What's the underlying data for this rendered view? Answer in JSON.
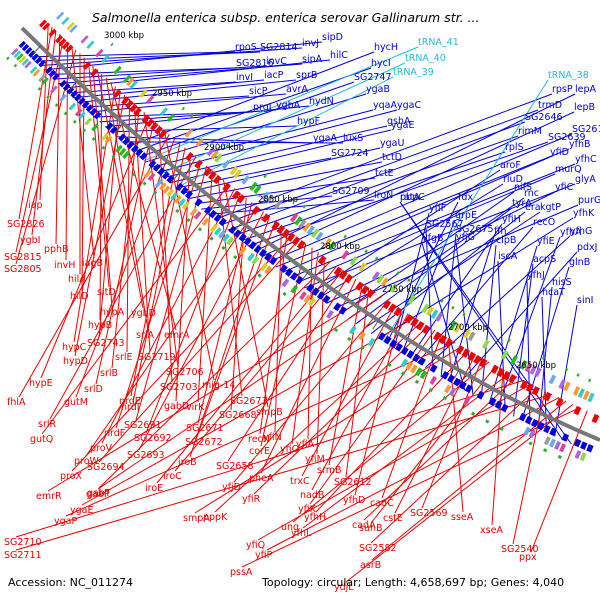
{
  "title": "Salmonella enterica subsp. enterica serovar Gallinarum str. ...",
  "footer": {
    "accession": "Accession: NC_011274",
    "topology": "Topology: circular; Length: 4,658,697 bp; Genes: 4,040"
  },
  "colors": {
    "backbone": "#777777",
    "forward_strand": "#0000dd",
    "reverse_strand": "#ee0000",
    "trna": "#22bbdd",
    "rrna_tick": "#229922",
    "gc_ticks": "#33aa33"
  },
  "scale_labels": [
    "3000 kbp",
    "2950 kbp",
    "2900 kbp",
    "2850 kbp",
    "2800 kbp",
    "2750 kbp",
    "2700 kbp",
    "2650 kbp"
  ],
  "blue_labels": [
    {
      "text": "rpoS"
    },
    {
      "text": "SG2814"
    },
    {
      "text": "invJ"
    },
    {
      "text": "sipD"
    },
    {
      "text": "SG2816"
    },
    {
      "text": "invC"
    },
    {
      "text": "sipA"
    },
    {
      "text": "hilC"
    },
    {
      "text": "invI"
    },
    {
      "text": "iacP"
    },
    {
      "text": "sprB"
    },
    {
      "text": "sicP"
    },
    {
      "text": "avrA"
    },
    {
      "text": "prgI"
    },
    {
      "text": "ygbA"
    },
    {
      "text": "hydN"
    },
    {
      "text": "hypF"
    },
    {
      "text": "ygaA"
    },
    {
      "text": "luxS"
    },
    {
      "text": "hycH"
    },
    {
      "text": "hycI"
    },
    {
      "text": "SG2747"
    },
    {
      "text": "ygaB"
    },
    {
      "text": "yqaA"
    },
    {
      "text": "ygaC"
    },
    {
      "text": "gshA"
    },
    {
      "text": "ygaE"
    },
    {
      "text": "SG2724"
    },
    {
      "text": "ygaU"
    },
    {
      "text": "tctD"
    },
    {
      "text": "tctE"
    },
    {
      "text": "SG2709"
    },
    {
      "text": "iroN"
    },
    {
      "text": "rpsP"
    },
    {
      "text": "trmD"
    },
    {
      "text": "SG2646"
    },
    {
      "text": "rimM"
    },
    {
      "text": "rplS"
    },
    {
      "text": "SG2639"
    },
    {
      "text": "lepA"
    },
    {
      "text": "lepB"
    },
    {
      "text": "SG2610"
    },
    {
      "text": "yfhB"
    },
    {
      "text": "yfiD"
    },
    {
      "text": "yfhC"
    },
    {
      "text": "murQ"
    },
    {
      "text": "glyA"
    },
    {
      "text": "aroF"
    },
    {
      "text": "rluD"
    },
    {
      "text": "yfiC"
    },
    {
      "text": "purG"
    },
    {
      "text": "nifS"
    },
    {
      "text": "rnc"
    },
    {
      "text": "tyrA"
    },
    {
      "text": "kgtP"
    },
    {
      "text": "era"
    },
    {
      "text": "yfhK"
    },
    {
      "text": "fdx"
    },
    {
      "text": "yfiF"
    },
    {
      "text": "grpE"
    },
    {
      "text": "yfiH"
    },
    {
      "text": "recO"
    },
    {
      "text": "yfhG"
    },
    {
      "text": "SG2567"
    },
    {
      "text": "SG2675"
    },
    {
      "text": "ffh"
    },
    {
      "text": "pdxJ"
    },
    {
      "text": "yfgB"
    },
    {
      "text": "yfjG"
    },
    {
      "text": "clpB"
    },
    {
      "text": "yfiE"
    },
    {
      "text": "yfhA"
    },
    {
      "text": "iscA"
    },
    {
      "text": "acpS"
    },
    {
      "text": "glnB"
    },
    {
      "text": "yfhJ"
    },
    {
      "text": "hisS"
    },
    {
      "text": "hcaT"
    },
    {
      "text": "sinI"
    },
    {
      "text": "pbpC"
    },
    {
      "text": "ratA"
    }
  ],
  "trna_labels": [
    {
      "text": "tRNA_41"
    },
    {
      "text": "tRNA_40"
    },
    {
      "text": "tRNA_39"
    },
    {
      "text": "tRNA_38"
    }
  ],
  "red_labels": [
    {
      "text": "iap"
    },
    {
      "text": "SG2826"
    },
    {
      "text": "ygbI"
    },
    {
      "text": "pphB"
    },
    {
      "text": "SG2815"
    },
    {
      "text": "invH"
    },
    {
      "text": "iagB"
    },
    {
      "text": "SG2805"
    },
    {
      "text": "hilA"
    },
    {
      "text": "hilD"
    },
    {
      "text": "sitD"
    },
    {
      "text": "hypA"
    },
    {
      "text": "ygbD"
    },
    {
      "text": "hypB"
    },
    {
      "text": "srlA"
    },
    {
      "text": "emrA"
    },
    {
      "text": "hypC"
    },
    {
      "text": "SG2743"
    },
    {
      "text": "hypD"
    },
    {
      "text": "srlE"
    },
    {
      "text": "SG2719"
    },
    {
      "text": "srlB"
    },
    {
      "text": "SG2706"
    },
    {
      "text": "hypE"
    },
    {
      "text": "srlD"
    },
    {
      "text": "SG2703"
    },
    {
      "text": "mig-14"
    },
    {
      "text": "fhlA"
    },
    {
      "text": "gutM"
    },
    {
      "text": "nrdE"
    },
    {
      "text": "nrdI"
    },
    {
      "text": "gabD"
    },
    {
      "text": "srlR"
    },
    {
      "text": "nrdF"
    },
    {
      "text": "SG2691"
    },
    {
      "text": "virK"
    },
    {
      "text": "SG2673"
    },
    {
      "text": "smpB"
    },
    {
      "text": "gutQ"
    },
    {
      "text": "proV"
    },
    {
      "text": "SG2692"
    },
    {
      "text": "SG2668"
    },
    {
      "text": "SG2671"
    },
    {
      "text": "proW"
    },
    {
      "text": "SG2693"
    },
    {
      "text": "iroB"
    },
    {
      "text": "SG2672"
    },
    {
      "text": "yfiN"
    },
    {
      "text": "recN"
    },
    {
      "text": "proX"
    },
    {
      "text": "SG2694"
    },
    {
      "text": "corE"
    },
    {
      "text": "yfiA"
    },
    {
      "text": "yfiO"
    },
    {
      "text": "yfiM"
    },
    {
      "text": "gabT"
    },
    {
      "text": "iroE"
    },
    {
      "text": "iroC"
    },
    {
      "text": "SG2658"
    },
    {
      "text": "pheA"
    },
    {
      "text": "srmB"
    },
    {
      "text": "SG2612"
    },
    {
      "text": "emrR"
    },
    {
      "text": "gabP"
    },
    {
      "text": "yfjD"
    },
    {
      "text": "trxC"
    },
    {
      "text": "yfhD"
    },
    {
      "text": "nadB"
    },
    {
      "text": "ygaE"
    },
    {
      "text": "pppK"
    },
    {
      "text": "yfiR"
    },
    {
      "text": "yfiK"
    },
    {
      "text": "cadC"
    },
    {
      "text": "sseA"
    },
    {
      "text": "ygaP"
    },
    {
      "text": "smpA"
    },
    {
      "text": "yfhH"
    },
    {
      "text": "cstE"
    },
    {
      "text": "SG2569"
    },
    {
      "text": "ung"
    },
    {
      "text": "suhB"
    },
    {
      "text": "xseA"
    },
    {
      "text": "yfhL"
    },
    {
      "text": "cadA"
    },
    {
      "text": "SG2710"
    },
    {
      "text": "yfiQ"
    },
    {
      "text": "SG2582"
    },
    {
      "text": "SG2540"
    },
    {
      "text": "SG2711"
    },
    {
      "text": "yfiP"
    },
    {
      "text": "asrB"
    },
    {
      "text": "ydjL"
    },
    {
      "text": "pssA"
    },
    {
      "text": "ppx"
    }
  ]
}
